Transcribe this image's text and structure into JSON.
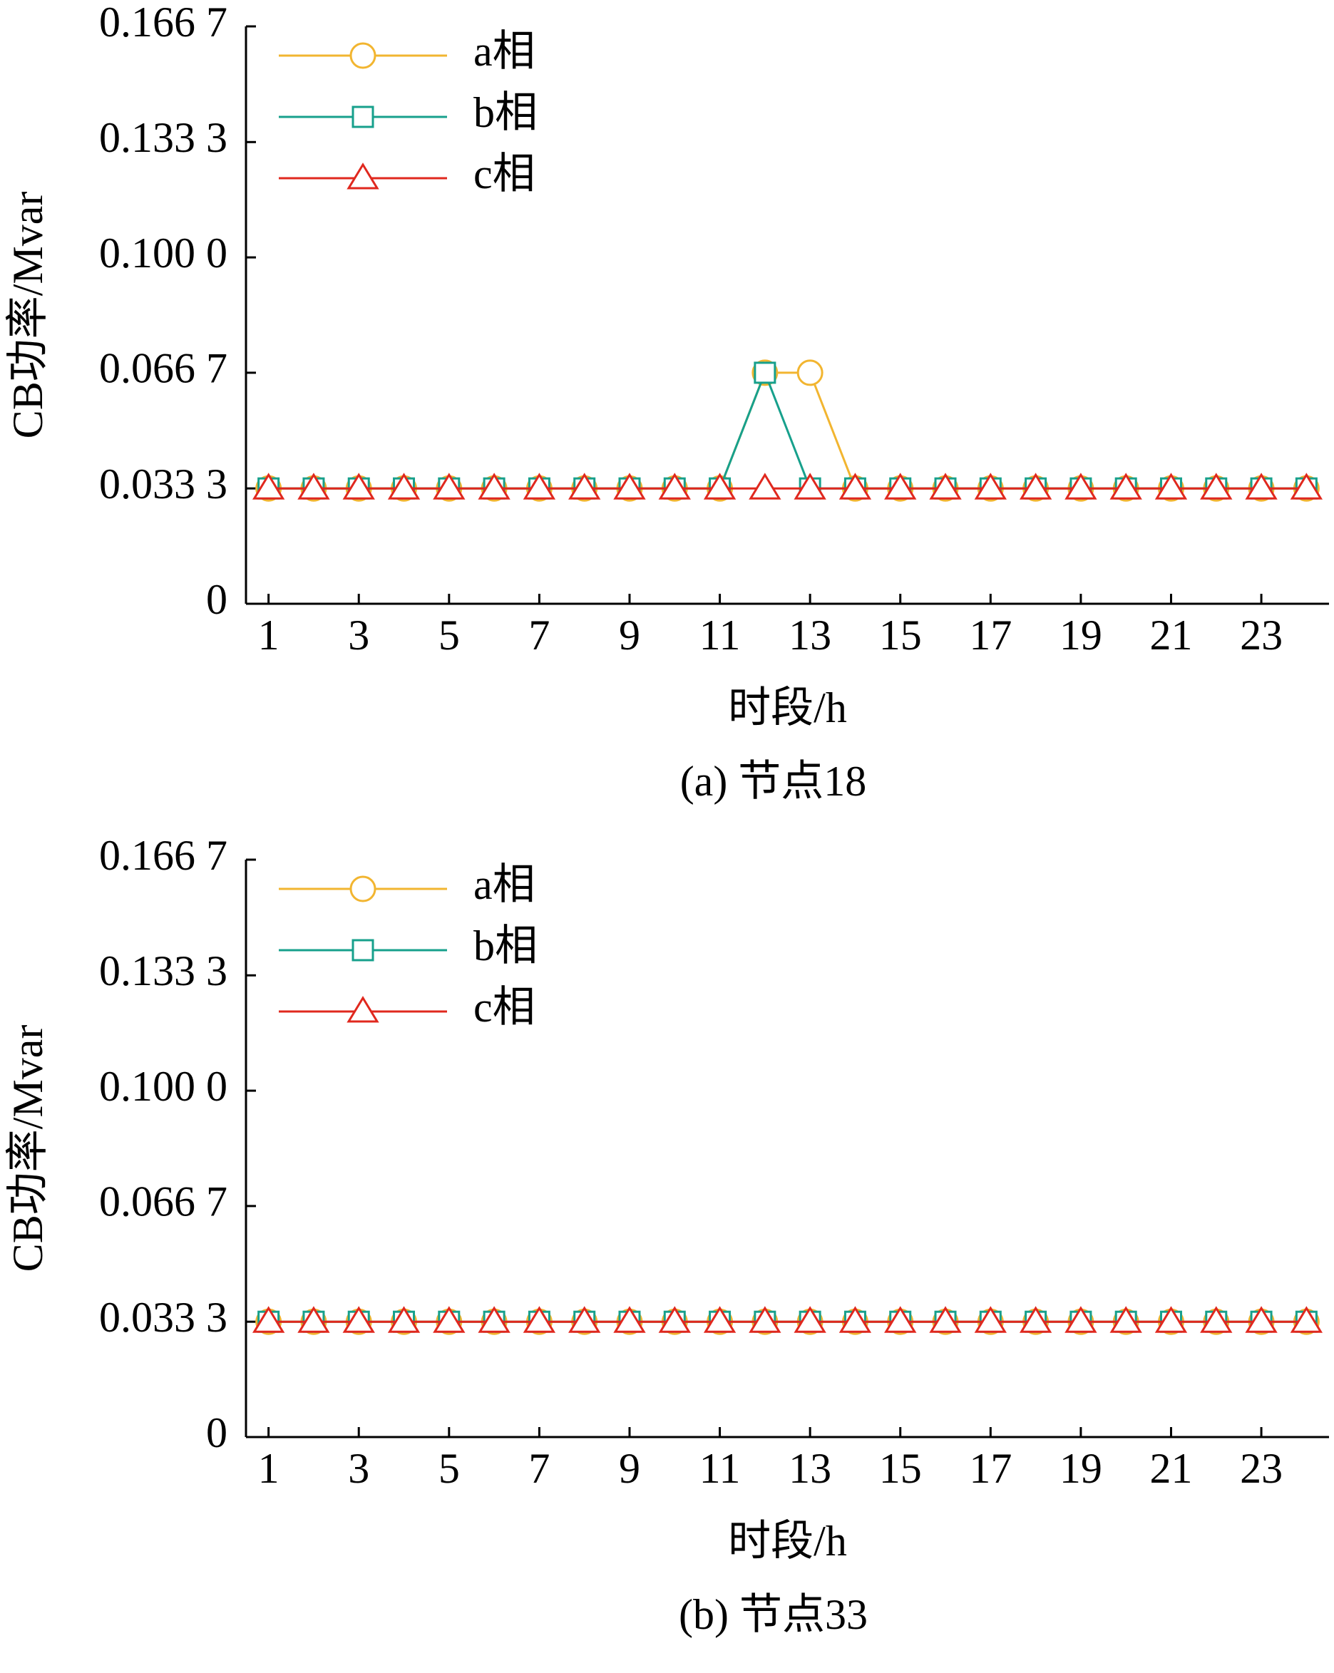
{
  "chart_data": [
    {
      "type": "line",
      "caption": "(a) 节点18",
      "x_label": "时段/h",
      "y_label": "CB功率/Mvar",
      "x": [
        1,
        2,
        3,
        4,
        5,
        6,
        7,
        8,
        9,
        10,
        11,
        12,
        13,
        14,
        15,
        16,
        17,
        18,
        19,
        20,
        21,
        22,
        23,
        24
      ],
      "xlim": [
        0.5,
        24.5
      ],
      "xticks": [
        1,
        3,
        5,
        7,
        9,
        11,
        13,
        15,
        17,
        19,
        21,
        23
      ],
      "ylim": [
        0,
        0.1667
      ],
      "yticks": [
        0,
        {
          "value": 0.0333,
          "label": "0.033 3"
        },
        {
          "value": 0.0667,
          "label": "0.066 7"
        },
        {
          "value": 0.1,
          "label": "0.100 0"
        },
        {
          "value": 0.1333,
          "label": "0.133 3"
        },
        {
          "value": 0.1667,
          "label": "0.166 7"
        }
      ],
      "legend": "upper left",
      "series": [
        {
          "name": "a相",
          "color": "#f2b530",
          "marker": "circle",
          "values": [
            0.0333,
            0.0333,
            0.0333,
            0.0333,
            0.0333,
            0.0333,
            0.0333,
            0.0333,
            0.0333,
            0.0333,
            0.0333,
            0.0667,
            0.0667,
            0.0333,
            0.0333,
            0.0333,
            0.0333,
            0.0333,
            0.0333,
            0.0333,
            0.0333,
            0.0333,
            0.0333,
            0.0333
          ]
        },
        {
          "name": "b相",
          "color": "#17a08c",
          "marker": "square",
          "values": [
            0.0333,
            0.0333,
            0.0333,
            0.0333,
            0.0333,
            0.0333,
            0.0333,
            0.0333,
            0.0333,
            0.0333,
            0.0333,
            0.0667,
            0.0333,
            0.0333,
            0.0333,
            0.0333,
            0.0333,
            0.0333,
            0.0333,
            0.0333,
            0.0333,
            0.0333,
            0.0333,
            0.0333
          ]
        },
        {
          "name": "c相",
          "color": "#e0281e",
          "marker": "triangle",
          "values": [
            0.0333,
            0.0333,
            0.0333,
            0.0333,
            0.0333,
            0.0333,
            0.0333,
            0.0333,
            0.0333,
            0.0333,
            0.0333,
            0.0333,
            0.0333,
            0.0333,
            0.0333,
            0.0333,
            0.0333,
            0.0333,
            0.0333,
            0.0333,
            0.0333,
            0.0333,
            0.0333,
            0.0333
          ]
        }
      ]
    },
    {
      "type": "line",
      "caption": "(b) 节点33",
      "x_label": "时段/h",
      "y_label": "CB功率/Mvar",
      "x": [
        1,
        2,
        3,
        4,
        5,
        6,
        7,
        8,
        9,
        10,
        11,
        12,
        13,
        14,
        15,
        16,
        17,
        18,
        19,
        20,
        21,
        22,
        23,
        24
      ],
      "xlim": [
        0.5,
        24.5
      ],
      "xticks": [
        1,
        3,
        5,
        7,
        9,
        11,
        13,
        15,
        17,
        19,
        21,
        23
      ],
      "ylim": [
        0,
        0.1667
      ],
      "yticks": [
        0,
        {
          "value": 0.0333,
          "label": "0.033 3"
        },
        {
          "value": 0.0667,
          "label": "0.066 7"
        },
        {
          "value": 0.1,
          "label": "0.100 0"
        },
        {
          "value": 0.1333,
          "label": "0.133 3"
        },
        {
          "value": 0.1667,
          "label": "0.166 7"
        }
      ],
      "legend": "upper left",
      "series": [
        {
          "name": "a相",
          "color": "#f2b530",
          "marker": "circle",
          "values": [
            0.0333,
            0.0333,
            0.0333,
            0.0333,
            0.0333,
            0.0333,
            0.0333,
            0.0333,
            0.0333,
            0.0333,
            0.0333,
            0.0333,
            0.0333,
            0.0333,
            0.0333,
            0.0333,
            0.0333,
            0.0333,
            0.0333,
            0.0333,
            0.0333,
            0.0333,
            0.0333,
            0.0333
          ]
        },
        {
          "name": "b相",
          "color": "#17a08c",
          "marker": "square",
          "values": [
            0.0333,
            0.0333,
            0.0333,
            0.0333,
            0.0333,
            0.0333,
            0.0333,
            0.0333,
            0.0333,
            0.0333,
            0.0333,
            0.0333,
            0.0333,
            0.0333,
            0.0333,
            0.0333,
            0.0333,
            0.0333,
            0.0333,
            0.0333,
            0.0333,
            0.0333,
            0.0333,
            0.0333
          ]
        },
        {
          "name": "c相",
          "color": "#e0281e",
          "marker": "triangle",
          "values": [
            0.0333,
            0.0333,
            0.0333,
            0.0333,
            0.0333,
            0.0333,
            0.0333,
            0.0333,
            0.0333,
            0.0333,
            0.0333,
            0.0333,
            0.0333,
            0.0333,
            0.0333,
            0.0333,
            0.0333,
            0.0333,
            0.0333,
            0.0333,
            0.0333,
            0.0333,
            0.0333,
            0.0333
          ]
        }
      ]
    }
  ]
}
